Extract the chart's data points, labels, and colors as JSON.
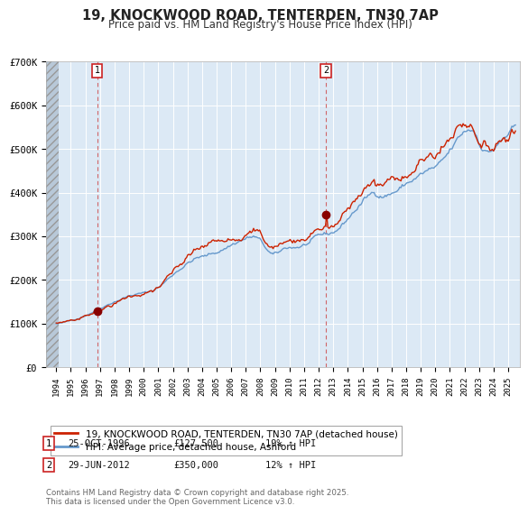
{
  "title": "19, KNOCKWOOD ROAD, TENTERDEN, TN30 7AP",
  "subtitle": "Price paid vs. HM Land Registry's House Price Index (HPI)",
  "ylim": [
    0,
    700000
  ],
  "yticks": [
    0,
    100000,
    200000,
    300000,
    400000,
    500000,
    600000,
    700000
  ],
  "ytick_labels": [
    "£0",
    "£100K",
    "£200K",
    "£300K",
    "£400K",
    "£500K",
    "£600K",
    "£700K"
  ],
  "hpi_color": "#6699cc",
  "price_color": "#cc2200",
  "marker1_date": 1996.82,
  "marker1_price": 127500,
  "marker2_date": 2012.49,
  "marker2_price": 350000,
  "legend_line1": "19, KNOCKWOOD ROAD, TENTERDEN, TN30 7AP (detached house)",
  "legend_line2": "HPI: Average price, detached house, Ashford",
  "annotation1_num": "1",
  "annotation1_date": "25-OCT-1996",
  "annotation1_price": "£127,500",
  "annotation1_hpi": "19% ↑ HPI",
  "annotation2_num": "2",
  "annotation2_date": "29-JUN-2012",
  "annotation2_price": "£350,000",
  "annotation2_hpi": "12% ↑ HPI",
  "footer": "Contains HM Land Registry data © Crown copyright and database right 2025.\nThis data is licensed under the Open Government Licence v3.0.",
  "bg_color": "#ffffff",
  "plot_bg_color": "#dce9f5",
  "hatch_bg_color": "#c8c8c8"
}
